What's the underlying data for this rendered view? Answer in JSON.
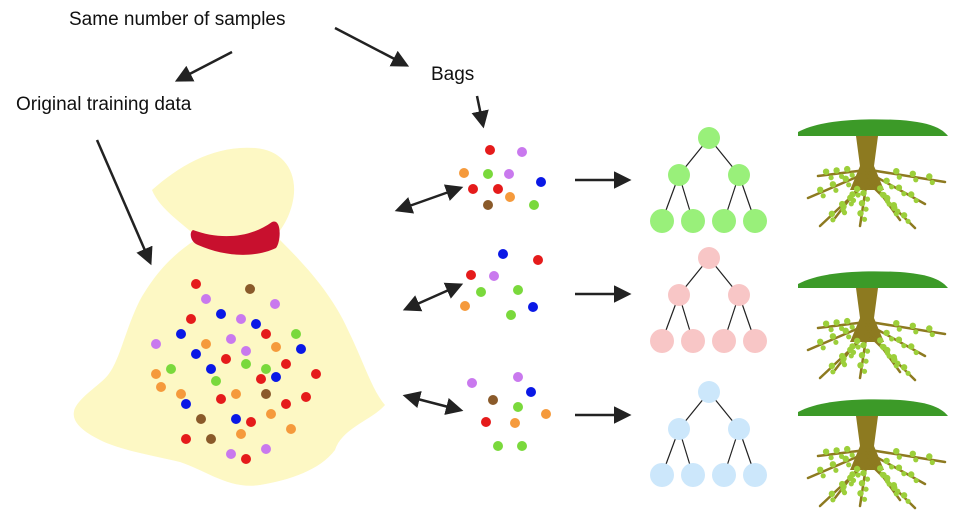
{
  "labels": {
    "same_samples": "Same number of samples",
    "original_data": "Original training data",
    "bags": "Bags"
  },
  "colors": {
    "bag_fill": "#fdf8c4",
    "tie": "#c8102e",
    "arrow": "#222222",
    "tree_edge": "#222222",
    "tree_row1": "#99f07a",
    "tree_row2": "#f8c6c6",
    "tree_row3": "#cce7fb",
    "canopy": "#3c9a28",
    "trunk": "#8d7a20",
    "leaf": "#9ccf3a"
  },
  "dot_colors": [
    "#e51b1b",
    "#7ad93c",
    "#0a18e6",
    "#f59a3c",
    "#c979ee",
    "#8a5a2a"
  ],
  "bags": [
    {
      "tree_color_key": "tree_row1"
    },
    {
      "tree_color_key": "tree_row2"
    },
    {
      "tree_color_key": "tree_row3"
    }
  ]
}
